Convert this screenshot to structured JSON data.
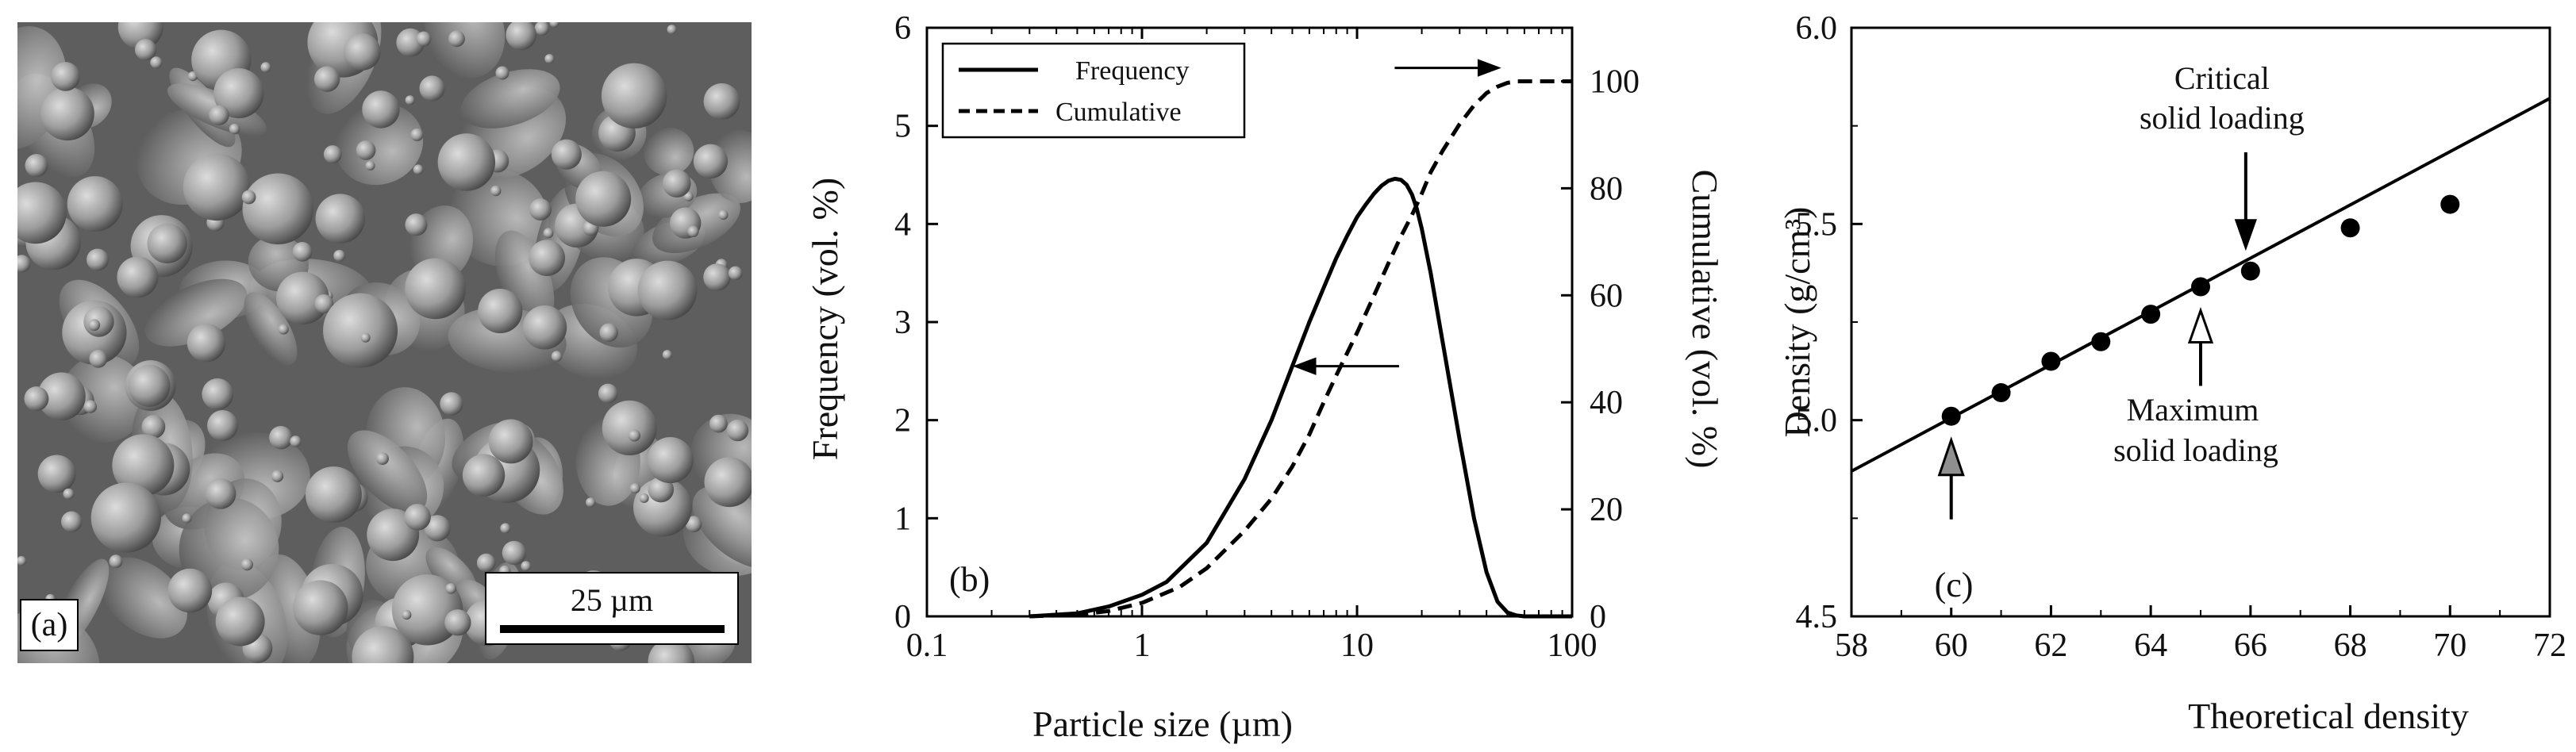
{
  "panels": {
    "a": {
      "label": "(a)",
      "scale_bar_label": "25 µm",
      "description": "SEM micrograph of powder particles"
    }
  },
  "chart_data": [
    {
      "panel_label": "(b)",
      "type": "line",
      "xscale": "log",
      "xlim": [
        0.1,
        100
      ],
      "xticks": [
        0.1,
        1,
        10,
        100
      ],
      "xtick_labels": [
        "0.1",
        "1",
        "10",
        "100"
      ],
      "xlabel": "Particle size (µm)",
      "ylabel": "Frequency (vol. %)",
      "ylim": [
        0,
        6
      ],
      "yticks": [
        0,
        1,
        2,
        3,
        4,
        5,
        6
      ],
      "y2label": "Cumulative (vol. %)",
      "y2lim": [
        0,
        110
      ],
      "y2ticks": [
        0,
        20,
        40,
        60,
        80,
        100
      ],
      "legend": {
        "placement": "top-left",
        "entries": [
          "Frequency",
          "Cumulative"
        ]
      },
      "series": [
        {
          "name": "Frequency",
          "axis": "left",
          "style": "solid",
          "x": [
            0.3,
            0.5,
            0.7,
            1.0,
            1.3,
            2,
            3,
            4,
            5,
            6,
            7,
            8,
            9,
            10,
            11,
            12,
            13,
            14,
            15,
            16,
            17,
            18,
            19,
            20,
            22,
            25,
            30,
            35,
            40,
            45,
            50,
            55,
            60,
            70,
            100
          ],
          "y": [
            0.0,
            0.03,
            0.1,
            0.22,
            0.35,
            0.75,
            1.4,
            2.0,
            2.55,
            3.0,
            3.35,
            3.65,
            3.88,
            4.07,
            4.2,
            4.31,
            4.39,
            4.44,
            4.46,
            4.45,
            4.4,
            4.3,
            4.15,
            3.95,
            3.5,
            2.8,
            1.8,
            1.0,
            0.45,
            0.15,
            0.04,
            0.01,
            0.0,
            0.0,
            0.0
          ]
        },
        {
          "name": "Cumulative",
          "axis": "right",
          "style": "dashed",
          "x": [
            0.3,
            0.5,
            0.7,
            1.0,
            1.5,
            2,
            3,
            4,
            5,
            6,
            7,
            8,
            10,
            12,
            14,
            16,
            18,
            20,
            22,
            25,
            30,
            35,
            40,
            45,
            50,
            55,
            60,
            70,
            100
          ],
          "y": [
            0,
            0.3,
            1.0,
            2.5,
            5.5,
            9,
            16,
            22,
            28,
            34,
            40,
            45,
            53,
            60,
            66,
            71,
            75,
            79,
            83,
            87,
            92,
            95.5,
            97.8,
            99,
            99.7,
            100,
            100,
            100,
            100
          ]
        }
      ],
      "annotations": [
        {
          "type": "arrow",
          "direction": "left",
          "meaning": "Frequency axis",
          "x": 7,
          "y": 2.55
        },
        {
          "type": "arrow",
          "direction": "right",
          "meaning": "Cumulative axis",
          "x": 35,
          "y": 102.5
        }
      ]
    },
    {
      "panel_label": "(c)",
      "type": "scatter",
      "xlim": [
        58,
        72
      ],
      "xticks": [
        58,
        60,
        62,
        64,
        66,
        68,
        70,
        72
      ],
      "xlabel": "Theoretical density",
      "ylabel": "Density (g/cm³)",
      "ylim": [
        4.5,
        6.0
      ],
      "yticks": [
        4.5,
        5.0,
        5.5,
        6.0
      ],
      "ytick_labels": [
        "4.5",
        "5.0",
        "5.5",
        "6.0"
      ],
      "points": {
        "x": [
          60,
          61,
          62,
          63,
          64,
          65,
          66,
          68,
          70
        ],
        "y": [
          5.01,
          5.07,
          5.15,
          5.2,
          5.27,
          5.34,
          5.38,
          5.49,
          5.55
        ]
      },
      "fit_line": {
        "x": [
          58,
          72
        ],
        "y": [
          4.87,
          5.82
        ]
      },
      "annotations": [
        {
          "text_lines": [
            "Critical",
            "solid loading"
          ],
          "target_x": 66,
          "target_y": 5.38,
          "arrow": "down",
          "arrow_fill": "black"
        },
        {
          "text_lines": [
            "Maximum",
            "solid loading"
          ],
          "target_x": 65,
          "target_y": 5.34,
          "arrow": "up",
          "arrow_fill": "white"
        },
        {
          "text_lines": [],
          "target_x": 60,
          "target_y": 5.01,
          "arrow": "up",
          "arrow_fill": "gray"
        }
      ]
    }
  ]
}
